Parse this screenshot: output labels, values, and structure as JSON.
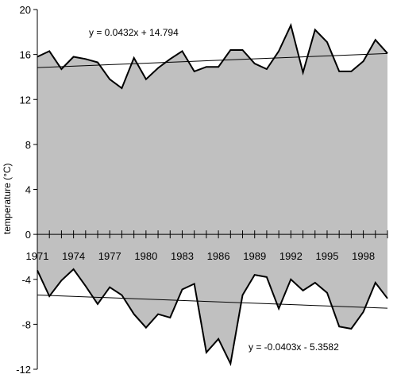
{
  "chart_data": {
    "type": "area",
    "ylabel": "temperature (°C)",
    "ylim": [
      -12,
      20
    ],
    "y_ticks": [
      20,
      16,
      12,
      8,
      4,
      0,
      -4,
      -8,
      -12
    ],
    "x_tick_labels": [
      "1971",
      "1974",
      "1977",
      "1980",
      "1983",
      "1986",
      "1989",
      "1992",
      "1995",
      "1998"
    ],
    "x": [
      1971,
      1972,
      1973,
      1974,
      1975,
      1976,
      1977,
      1978,
      1979,
      1980,
      1981,
      1982,
      1983,
      1984,
      1985,
      1986,
      1987,
      1988,
      1989,
      1990,
      1991,
      1992,
      1993,
      1994,
      1995,
      1996,
      1997,
      1998,
      1999,
      2000
    ],
    "grid": false,
    "fill_color": "#c0c0c0",
    "line_color": "#000000",
    "series": [
      {
        "values": [
          15.8,
          16.3,
          14.7,
          15.8,
          15.6,
          15.3,
          13.8,
          13.0,
          15.7,
          13.8,
          14.8,
          15.6,
          16.3,
          14.5,
          14.9,
          14.9,
          16.4,
          16.4,
          15.2,
          14.7,
          16.3,
          18.6,
          14.4,
          18.2,
          17.1,
          14.5,
          14.5,
          15.4,
          17.3,
          16.1
        ],
        "trendline": {
          "slope": 0.0432,
          "intercept": 14.794,
          "equation": "y = 0.0432x + 14.794"
        }
      },
      {
        "values": [
          -3.2,
          -5.5,
          -4.1,
          -3.1,
          -4.6,
          -6.2,
          -4.7,
          -5.4,
          -7.1,
          -8.3,
          -7.1,
          -7.4,
          -4.9,
          -4.4,
          -10.5,
          -9.3,
          -11.5,
          -5.4,
          -3.6,
          -3.8,
          -6.6,
          -4.0,
          -5.0,
          -4.3,
          -5.2,
          -8.2,
          -8.4,
          -6.9,
          -4.3,
          -5.7
        ],
        "trendline": {
          "slope": -0.0403,
          "intercept": -5.3582,
          "equation": "y = -0.0403x - 5.3582"
        }
      }
    ]
  }
}
